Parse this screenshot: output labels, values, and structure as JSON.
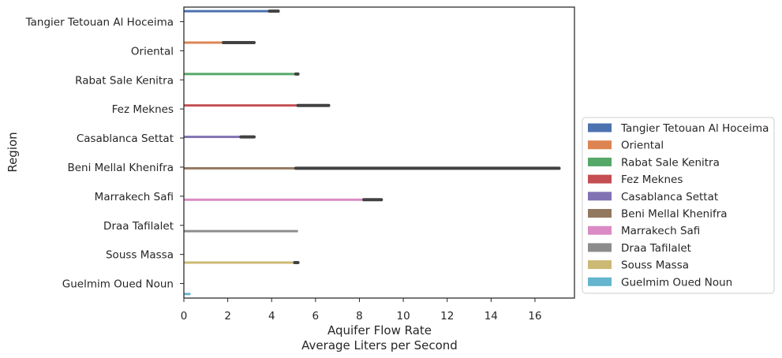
{
  "chart_data": {
    "type": "bar",
    "orientation": "horizontal",
    "layout": "grouped (hue = Region)",
    "xlabel": "Aquifer Flow Rate",
    "xlabel_line2": "Average Liters per Second",
    "ylabel": "Region",
    "xlim": [
      0,
      17.8
    ],
    "xticks": [
      0,
      2,
      4,
      6,
      8,
      10,
      12,
      14,
      16
    ],
    "grid": false,
    "legend_position": "right, outside plot",
    "categories": [
      "Tangier Tetouan Al Hoceima",
      "Oriental",
      "Rabat Sale Kenitra",
      "Fez Meknes",
      "Casablanca Settat",
      "Beni Mellal Khenifra",
      "Marrakech Safi",
      "Draa Tafilalet",
      "Souss Massa",
      "Guelmim Oued Noun"
    ],
    "series": [
      {
        "name": "Tangier Tetouan Al Hoceima",
        "color": "#4c72b0",
        "category_index": 0,
        "value": 4.0,
        "ci": [
          3.9,
          4.3
        ]
      },
      {
        "name": "Oriental",
        "color": "#dd8452",
        "category_index": 1,
        "value": 1.9,
        "ci": [
          1.8,
          3.2
        ]
      },
      {
        "name": "Rabat Sale Kenitra",
        "color": "#55a868",
        "category_index": 2,
        "value": 5.15,
        "ci": [
          5.1,
          5.2
        ]
      },
      {
        "name": "Fez Meknes",
        "color": "#c44e52",
        "category_index": 3,
        "value": 5.2,
        "ci": [
          5.2,
          6.6
        ]
      },
      {
        "name": "Casablanca Settat",
        "color": "#8172b3",
        "category_index": 4,
        "value": 2.6,
        "ci": [
          2.6,
          3.2
        ]
      },
      {
        "name": "Beni Mellal Khenifra",
        "color": "#937860",
        "category_index": 5,
        "value": 5.2,
        "ci": [
          5.1,
          17.1
        ]
      },
      {
        "name": "Marrakech Safi",
        "color": "#da8bc3",
        "category_index": 6,
        "value": 8.3,
        "ci": [
          8.2,
          9.0
        ]
      },
      {
        "name": "Draa Tafilalet",
        "color": "#8c8c8c",
        "category_index": 7,
        "value": 5.2,
        "ci": null
      },
      {
        "name": "Souss Massa",
        "color": "#ccb974",
        "category_index": 8,
        "value": 5.1,
        "ci": [
          5.05,
          5.2
        ]
      },
      {
        "name": "Guelmim Oued Noun",
        "color": "#64b5cd",
        "category_index": 9,
        "value": 0.3,
        "ci": null
      }
    ]
  }
}
